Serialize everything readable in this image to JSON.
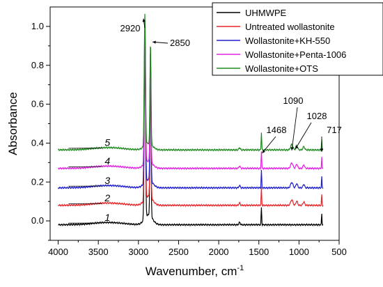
{
  "chart_data": {
    "type": "line",
    "xlabel": "Wavenumber, cm",
    "xlabel_superscript": "-1",
    "ylabel": "Absorbance",
    "xlim": [
      4100,
      500
    ],
    "ylim": [
      -0.1,
      1.1
    ],
    "x_ticks": [
      4000,
      3500,
      3000,
      2500,
      2000,
      1500,
      1000,
      500
    ],
    "y_ticks": [
      0.0,
      0.2,
      0.4,
      0.6,
      0.8,
      1.0
    ],
    "y_tick_labels": [
      "0.0",
      "0.2",
      "0.4",
      "0.6",
      "0.8",
      "1.0"
    ],
    "legend_position": "top-right",
    "series": [
      {
        "name": "UHMWPE",
        "color": "#000000",
        "number": "1",
        "baseline": -0.02,
        "main_peak": 0.98,
        "number_at": [
          3420,
          0.0
        ]
      },
      {
        "name": "Untreated wollastonite",
        "color": "#e8262a",
        "number": "2",
        "baseline": 0.08,
        "main_peak": 0.98,
        "number_at": [
          3420,
          0.1
        ]
      },
      {
        "name": "Wollastonite+KH-550",
        "color": "#1f1fd0",
        "number": "3",
        "baseline": 0.17,
        "main_peak": 1.02,
        "number_at": [
          3420,
          0.19
        ]
      },
      {
        "name": "Wollastonite+Penta-1006",
        "color": "#e224e2",
        "number": "4",
        "baseline": 0.27,
        "main_peak": 1.02,
        "number_at": [
          3420,
          0.29
        ]
      },
      {
        "name": "Wollastonite+OTS",
        "color": "#1e8a1e",
        "number": "5",
        "baseline": 0.365,
        "main_peak": 1.06,
        "number_at": [
          3420,
          0.385
        ]
      }
    ],
    "peaks": [
      {
        "label": "2920",
        "x": 2920
      },
      {
        "label": "2850",
        "x": 2850
      },
      {
        "label": "1468",
        "x": 1468
      },
      {
        "label": "1090",
        "x": 1090
      },
      {
        "label": "1028",
        "x": 1028
      },
      {
        "label": "717",
        "x": 717
      }
    ]
  }
}
